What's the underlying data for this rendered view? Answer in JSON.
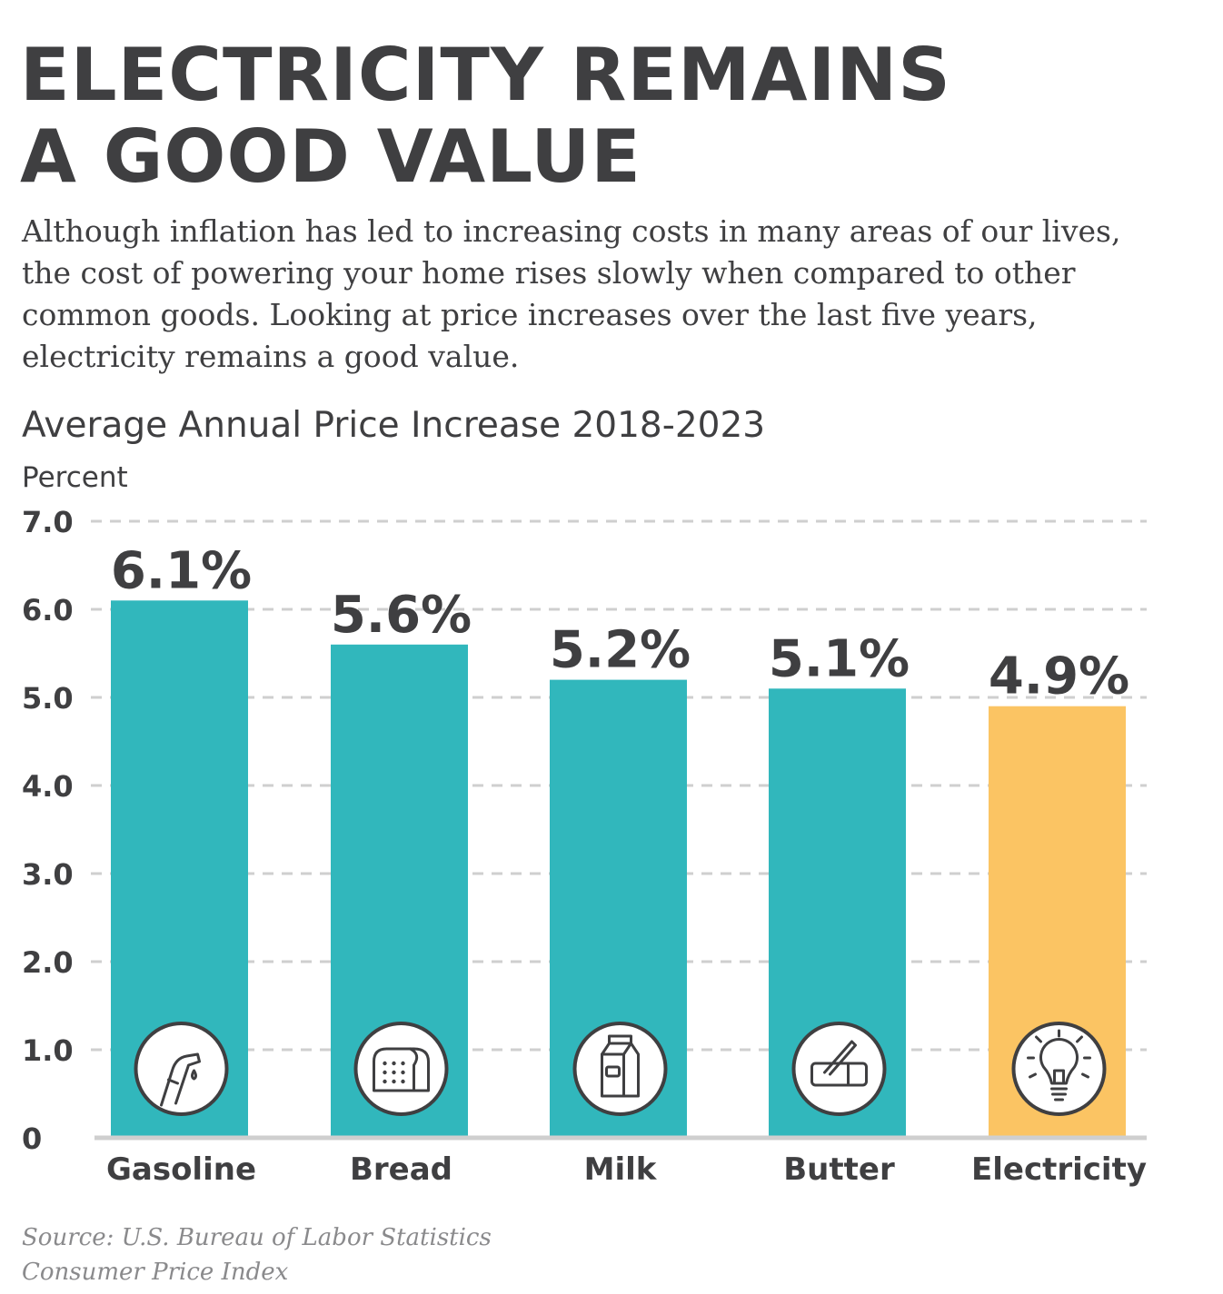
{
  "headline": {
    "line1": "ELECTRICITY REMAINS",
    "line2": "A GOOD VALUE"
  },
  "intro": {
    "line1": "Although inflation has led to increasing costs in many areas of our lives,",
    "line2": "the cost of powering your home rises slowly when compared to other",
    "line3": "common goods. Looking at price increases over the last five years,",
    "line4": "electricity remains a good value."
  },
  "source": {
    "line1": "Source: U.S. Bureau of Labor Statistics",
    "line2": "Consumer Price Index"
  },
  "colors": {
    "bar_default": "#31b7bc",
    "bar_highlight": "#fbc463",
    "text": "#3f3f41",
    "grid": "#cfcfcf",
    "source_text": "#8a8a8c"
  },
  "chart_data": {
    "type": "bar",
    "title": "Average Annual Price Increase 2018-2023",
    "ylabel": "Percent",
    "xlabel": "",
    "ylim": [
      0,
      7
    ],
    "yticks": [
      0,
      1,
      2,
      3,
      4,
      5,
      6,
      7
    ],
    "ytick_labels": [
      "0",
      "1.0",
      "2.0",
      "3.0",
      "4.0",
      "5.0",
      "6.0",
      "7.0"
    ],
    "grid": true,
    "categories": [
      "Gasoline",
      "Bread",
      "Milk",
      "Butter",
      "Electricity"
    ],
    "values": [
      6.1,
      5.6,
      5.2,
      5.1,
      4.9
    ],
    "value_labels": [
      "6.1%",
      "5.6%",
      "5.2%",
      "5.1%",
      "4.9%"
    ],
    "icons": [
      "fuel-pump-icon",
      "bread-icon",
      "milk-carton-icon",
      "butter-icon",
      "light-bulb-icon"
    ],
    "highlight": "Electricity"
  }
}
